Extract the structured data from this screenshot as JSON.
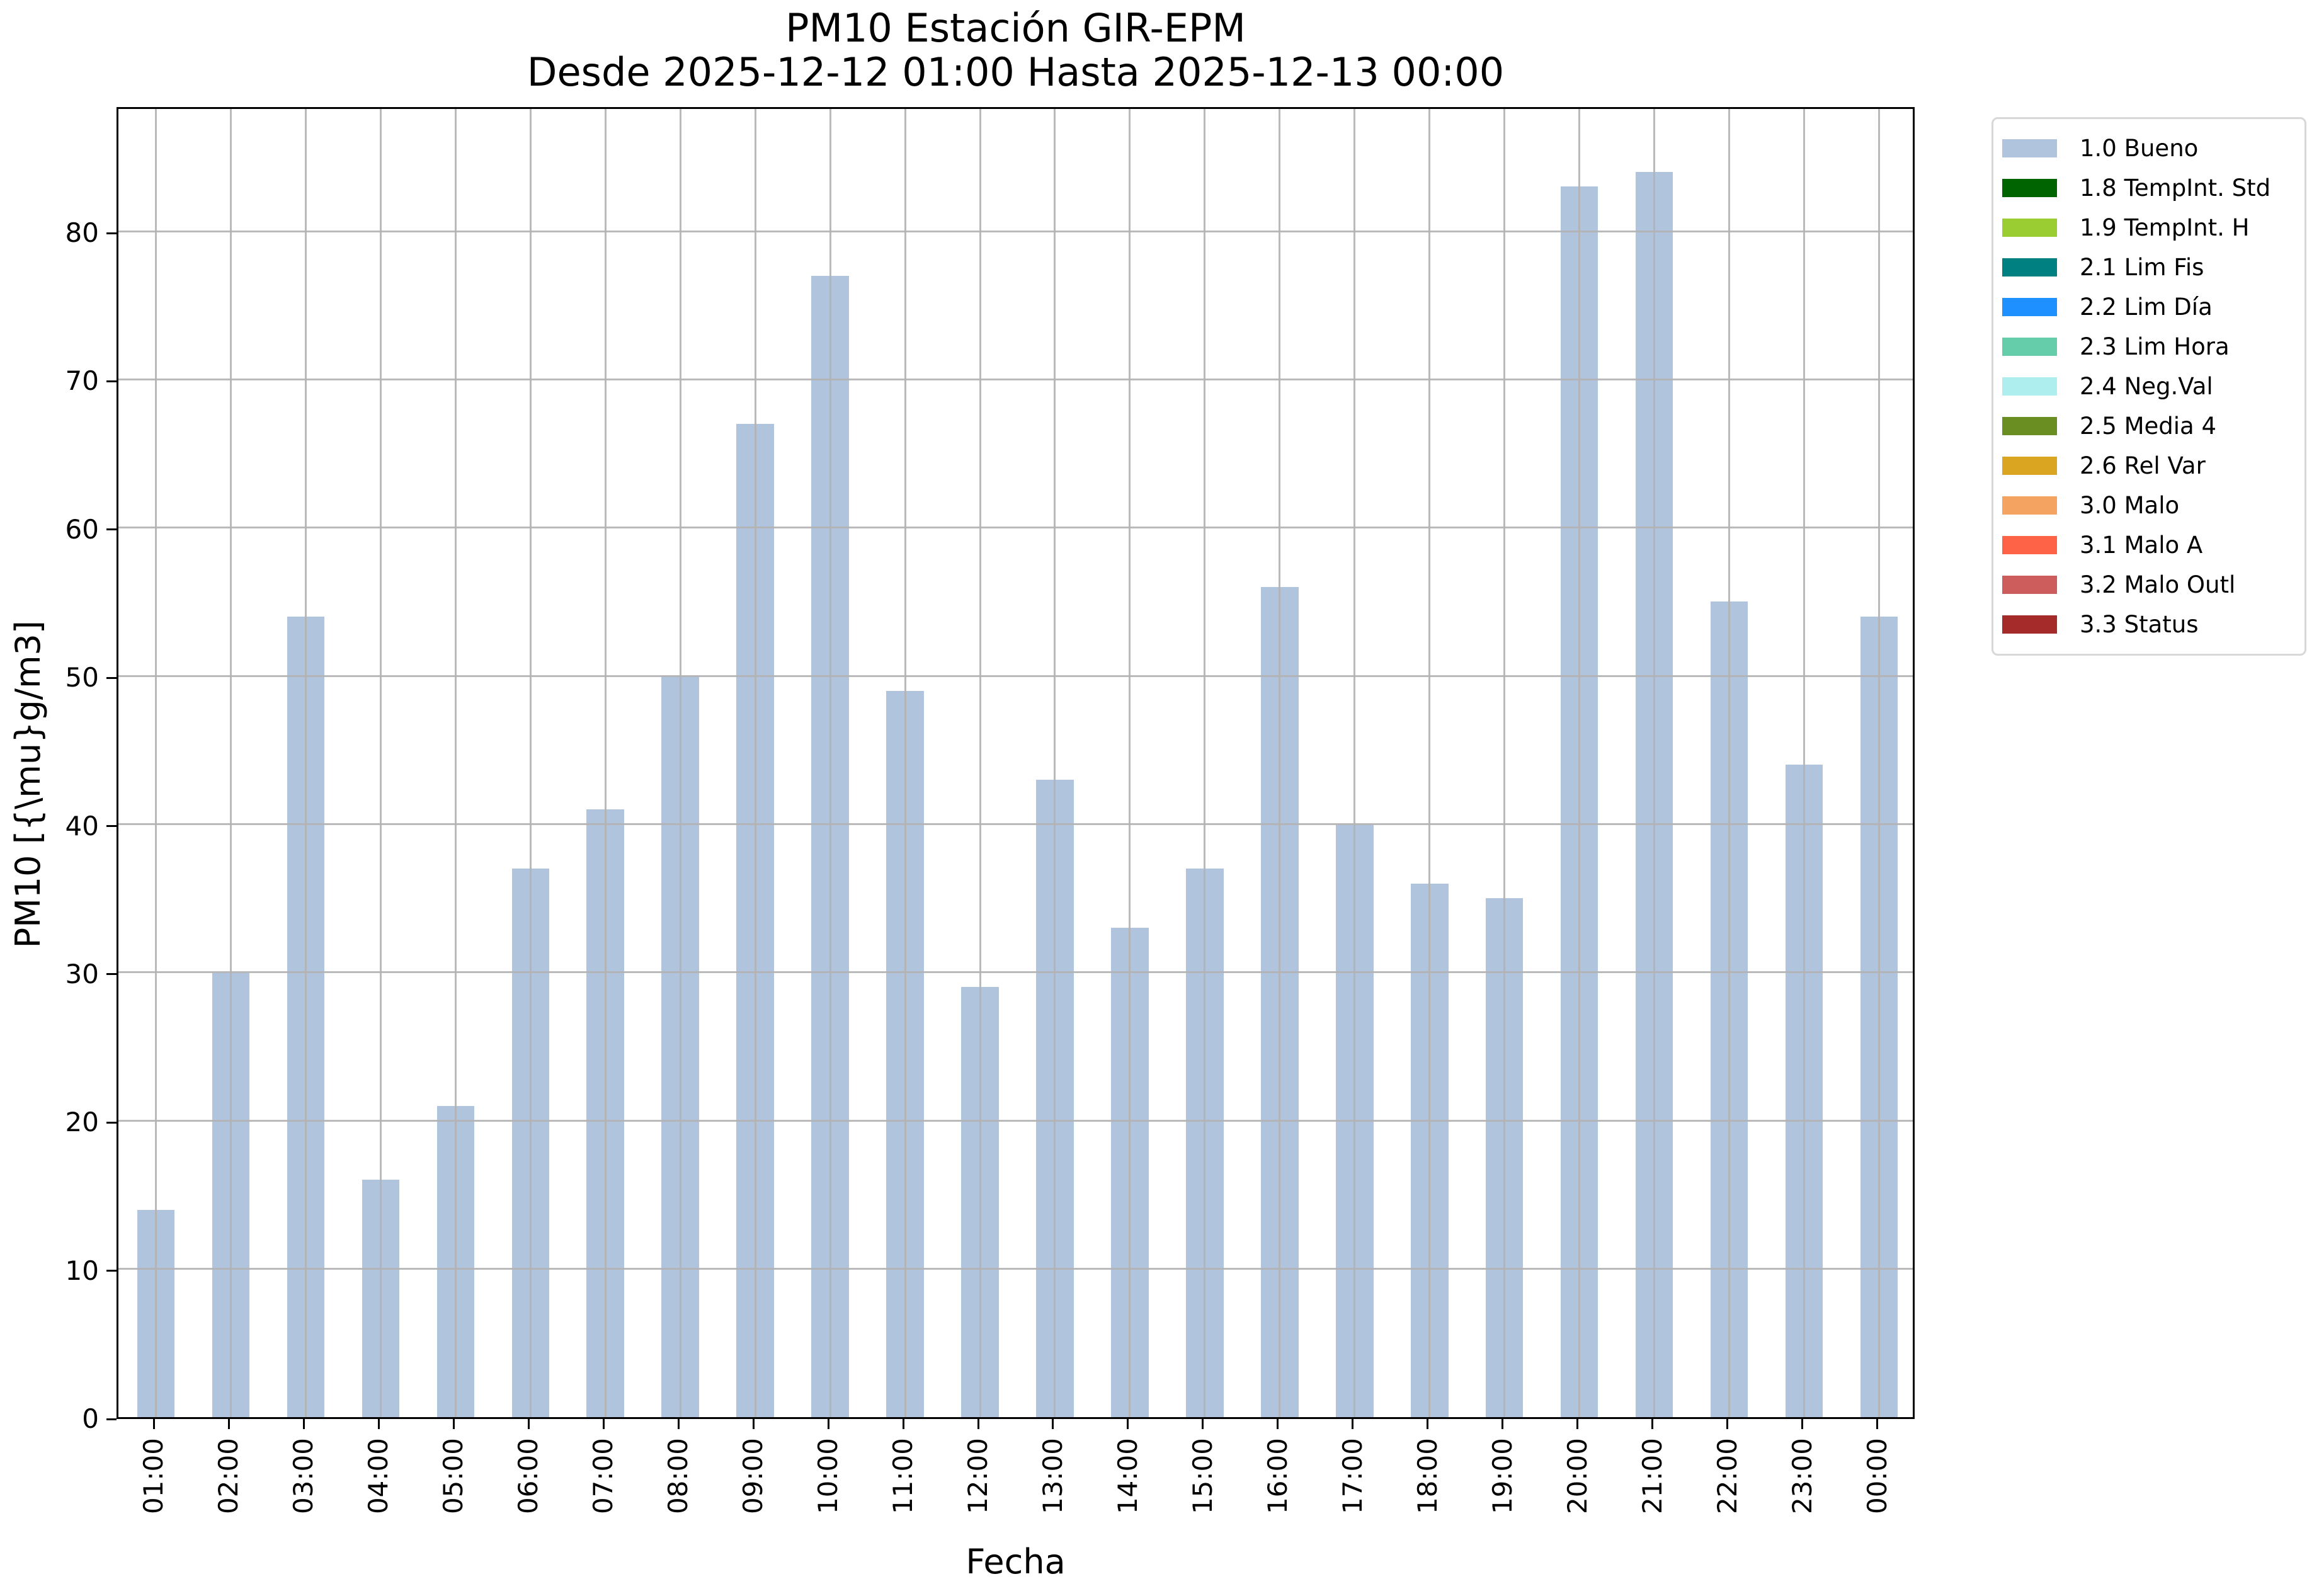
{
  "chart_data": {
    "type": "bar",
    "title": "PM10 Estación GIR-EPM",
    "subtitle": "Desde 2025-12-12 01:00 Hasta 2025-12-13 00:00",
    "xlabel": "Fecha",
    "ylabel": "PM10 [{\\mu}g/m3]",
    "categories": [
      "01:00",
      "02:00",
      "03:00",
      "04:00",
      "05:00",
      "06:00",
      "07:00",
      "08:00",
      "09:00",
      "10:00",
      "11:00",
      "12:00",
      "13:00",
      "14:00",
      "15:00",
      "16:00",
      "17:00",
      "18:00",
      "19:00",
      "20:00",
      "21:00",
      "22:00",
      "23:00",
      "00:00"
    ],
    "values": [
      14,
      30,
      54,
      16,
      21,
      37,
      41,
      50,
      67,
      77,
      49,
      29,
      43,
      33,
      37,
      56,
      40,
      36,
      35,
      83,
      84,
      55,
      44,
      54
    ],
    "series_name": "1.0 Bueno",
    "bar_color": "#b0c4de",
    "ylim": [
      0,
      88.5
    ],
    "yticks": [
      0,
      10,
      20,
      30,
      40,
      50,
      60,
      70,
      80
    ],
    "grid": true,
    "grid_color": "#b2b2b2",
    "legend_position": "outside-upper-right",
    "legend": [
      {
        "label": "1.0 Bueno",
        "color": "#b0c4de"
      },
      {
        "label": "1.8 TempInt. Std",
        "color": "#006400"
      },
      {
        "label": "1.9 TempInt. H",
        "color": "#9acd32"
      },
      {
        "label": "2.1 Lim Fis",
        "color": "#008080"
      },
      {
        "label": "2.2 Lim Día",
        "color": "#1e90ff"
      },
      {
        "label": "2.3 Lim Hora",
        "color": "#66cdaa"
      },
      {
        "label": "2.4 Neg.Val",
        "color": "#afeeee"
      },
      {
        "label": "2.5 Media 4",
        "color": "#6b8e23"
      },
      {
        "label": "2.6 Rel Var",
        "color": "#daa520"
      },
      {
        "label": "3.0 Malo",
        "color": "#f4a460"
      },
      {
        "label": "3.1 Malo A",
        "color": "#ff6347"
      },
      {
        "label": "3.2 Malo Outl",
        "color": "#cd5c5c"
      },
      {
        "label": "3.3 Status",
        "color": "#a52a2a"
      }
    ]
  }
}
